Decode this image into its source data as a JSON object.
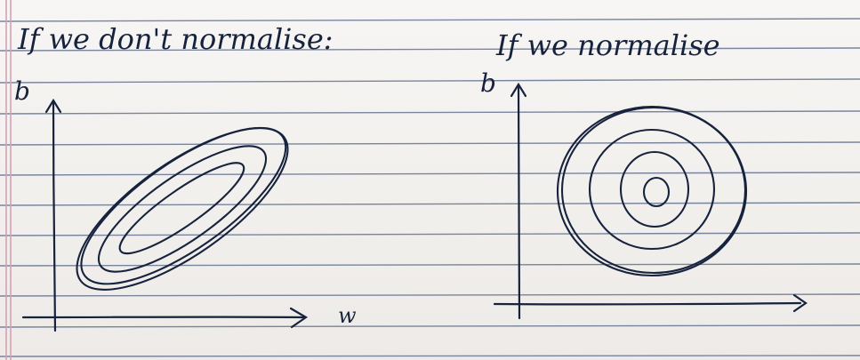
{
  "left_panel": {
    "heading": "If we don't normalise:",
    "y_axis_label": "b",
    "x_axis_label": "w"
  },
  "right_panel": {
    "heading": "If we normalise",
    "y_axis_label": "b"
  },
  "colors": {
    "ink": "#17233d",
    "ruled_line": "#5a6a88",
    "margin_line": "#d7a0b6",
    "paper": "#f3f1ee"
  }
}
